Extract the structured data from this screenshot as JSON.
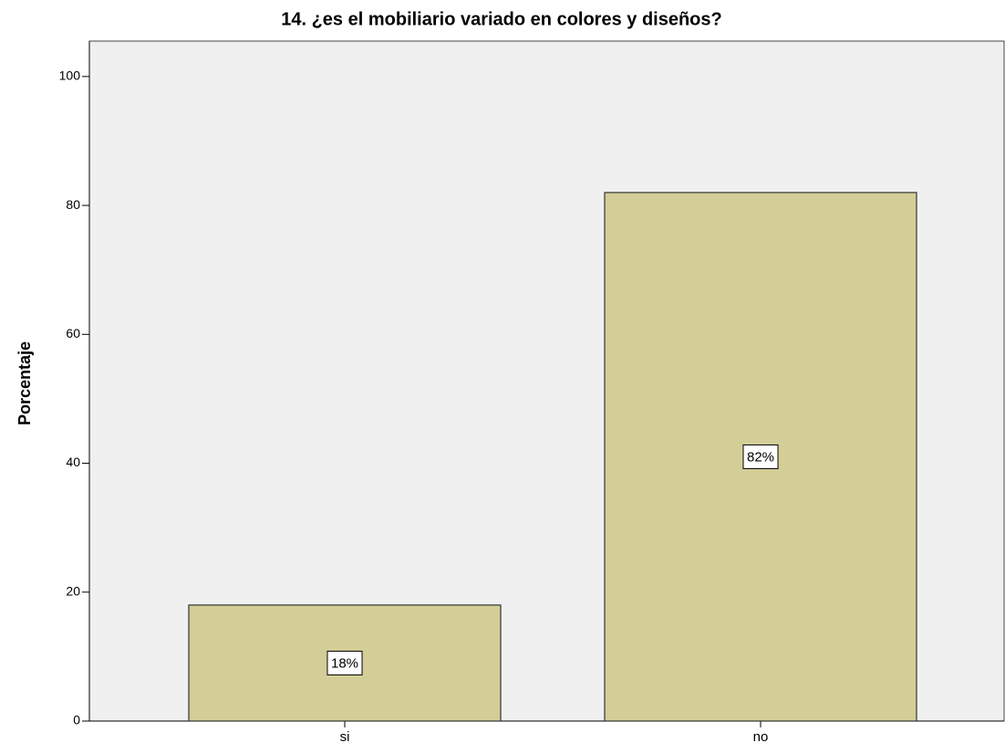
{
  "chart_data": {
    "type": "bar",
    "title": "14. ¿es el mobiliario variado en colores y diseños?",
    "y_label": "Porcentaje",
    "categories": [
      "si",
      "no"
    ],
    "values": [
      18,
      82
    ],
    "value_labels": [
      "18%",
      "82%"
    ],
    "color": "#d3ce97",
    "ylim": [
      0,
      105.5
    ],
    "yticks": [
      0,
      20,
      40,
      60,
      80,
      100
    ]
  }
}
